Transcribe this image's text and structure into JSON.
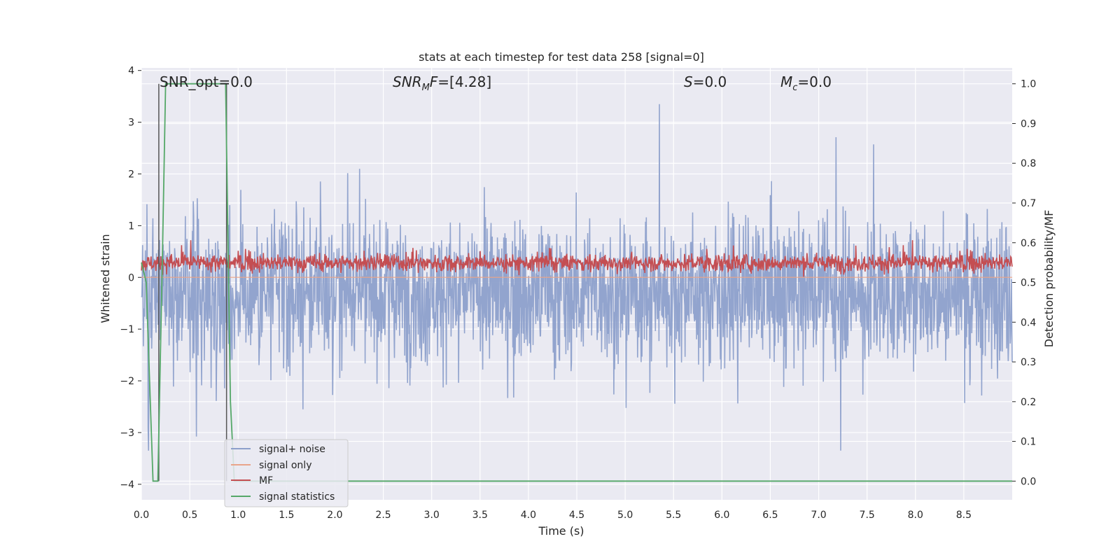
{
  "chart_data": {
    "type": "line",
    "title": "stats at each timestep for test data 258 [signal=0]",
    "xlabel": "Time (s)",
    "ylabel": "Whitened strain",
    "ylabel_right": "Detection probability/MF",
    "xlim": [
      0.0,
      9.0
    ],
    "ylim": [
      -4.3,
      4.05
    ],
    "ylim_right": [
      -0.047,
      1.04
    ],
    "x_ticks": [
      "0.0",
      "0.5",
      "1.0",
      "1.5",
      "2.0",
      "2.5",
      "3.0",
      "3.5",
      "4.0",
      "4.5",
      "5.0",
      "5.5",
      "6.0",
      "6.5",
      "7.0",
      "7.5",
      "8.0",
      "8.5"
    ],
    "y_ticks": [
      "4",
      "3",
      "2",
      "1",
      "0",
      "−1",
      "−2",
      "−3",
      "−4"
    ],
    "y_ticks_right": [
      "1.0",
      "0.9",
      "0.8",
      "0.7",
      "0.6",
      "0.5",
      "0.4",
      "0.3",
      "0.2",
      "0.1",
      "0.0"
    ],
    "grid": true,
    "legend_position": "lower-left",
    "annotations": {
      "snr_opt": {
        "label": "SNR_opt=",
        "value": "0.0"
      },
      "snr_mf": {
        "label": "SNR",
        "sub": "M",
        "label_tail": "F=",
        "value": "[4.28]"
      },
      "s": {
        "label": "S",
        "value": "=0.0"
      },
      "mc": {
        "label": "M",
        "sub": "c",
        "value": "=0.0"
      }
    },
    "series": [
      {
        "name": "signal+ noise",
        "color": "#8da0cb",
        "description_values": {
          "axis": "left",
          "mean": -0.3,
          "envelope_upper": 2.4,
          "envelope_lower": -2.6,
          "max": 3.35,
          "min": -3.35
        }
      },
      {
        "name": "signal only",
        "color": "#e9a48a",
        "values_note": "flat",
        "value": 0.0
      },
      {
        "name": "MF",
        "color": "#c44e52",
        "description_values": {
          "axis": "left",
          "mean": 0.28,
          "upper": 0.55,
          "lower": 0.05,
          "max": 0.95
        }
      },
      {
        "name": "signal statistics",
        "color": "#55a868",
        "axis": "right",
        "x": [
          0.0,
          0.05,
          0.12,
          0.17,
          0.22,
          0.25,
          0.5,
          0.7,
          0.85,
          0.87,
          0.92,
          0.96,
          1.0,
          2.0,
          4.0,
          6.0,
          8.0,
          9.0
        ],
        "y": [
          0.55,
          0.5,
          0.0,
          0.0,
          0.6,
          1.0,
          1.0,
          1.0,
          1.0,
          1.0,
          0.2,
          0.0,
          0.0,
          0.0,
          0.0,
          0.0,
          0.0,
          0.0
        ]
      }
    ],
    "vlines": [
      0.18,
      0.88
    ]
  }
}
